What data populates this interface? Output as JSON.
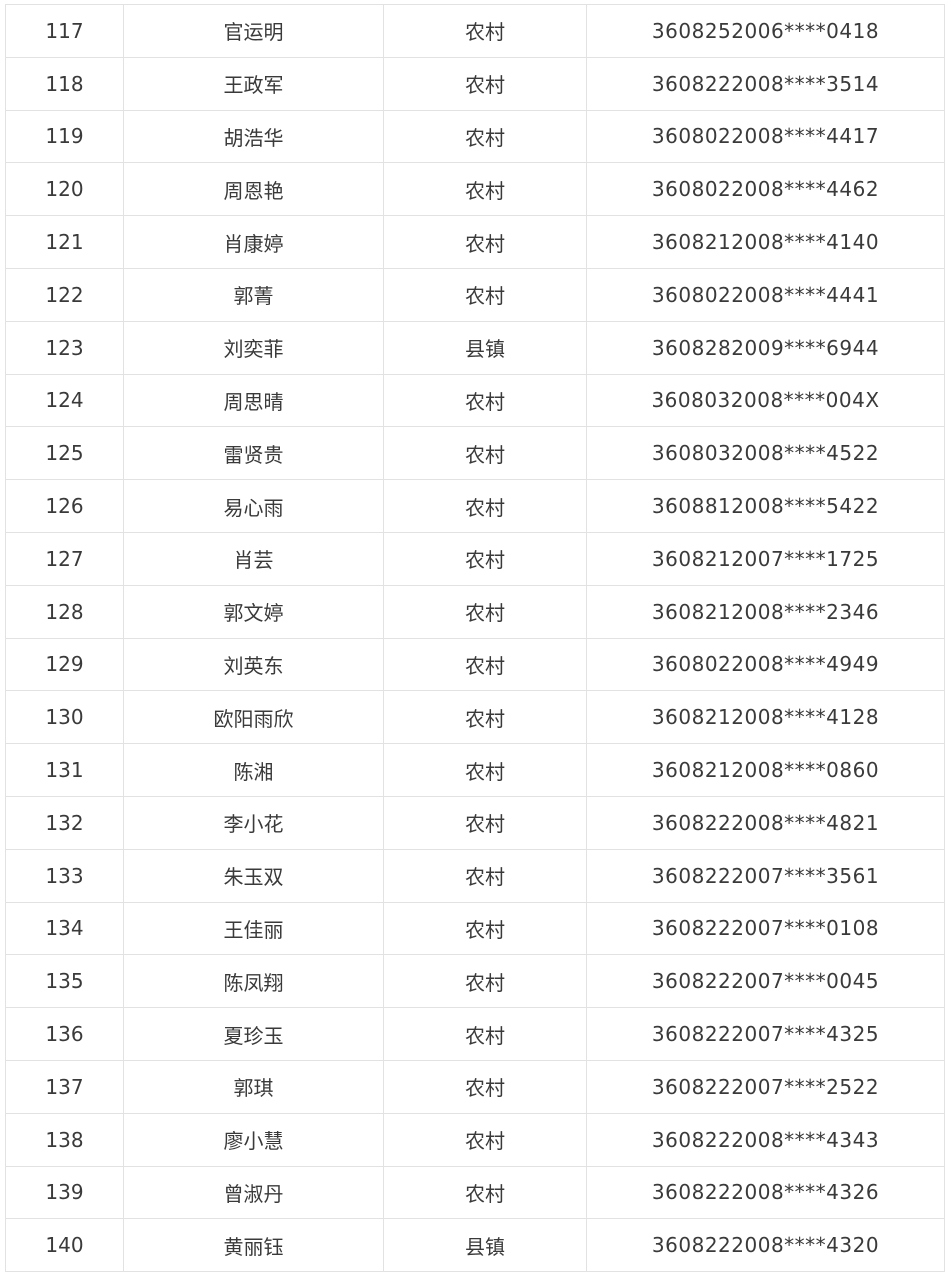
{
  "table": {
    "rows": [
      [
        "117",
        "官运明",
        "农村",
        "3608252006****0418"
      ],
      [
        "118",
        "王政军",
        "农村",
        "3608222008****3514"
      ],
      [
        "119",
        "胡浩华",
        "农村",
        "3608022008****4417"
      ],
      [
        "120",
        "周恩艳",
        "农村",
        "3608022008****4462"
      ],
      [
        "121",
        "肖康婷",
        "农村",
        "3608212008****4140"
      ],
      [
        "122",
        "郭菁",
        "农村",
        "3608022008****4441"
      ],
      [
        "123",
        "刘奕菲",
        "县镇",
        "3608282009****6944"
      ],
      [
        "124",
        "周思晴",
        "农村",
        "3608032008****004X"
      ],
      [
        "125",
        "雷贤贵",
        "农村",
        "3608032008****4522"
      ],
      [
        "126",
        "易心雨",
        "农村",
        "3608812008****5422"
      ],
      [
        "127",
        "肖芸",
        "农村",
        "3608212007****1725"
      ],
      [
        "128",
        "郭文婷",
        "农村",
        "3608212008****2346"
      ],
      [
        "129",
        "刘英东",
        "农村",
        "3608022008****4949"
      ],
      [
        "130",
        "欧阳雨欣",
        "农村",
        "3608212008****4128"
      ],
      [
        "131",
        "陈湘",
        "农村",
        "3608212008****0860"
      ],
      [
        "132",
        "李小花",
        "农村",
        "3608222008****4821"
      ],
      [
        "133",
        "朱玉双",
        "农村",
        "3608222007****3561"
      ],
      [
        "134",
        "王佳丽",
        "农村",
        "3608222007****0108"
      ],
      [
        "135",
        "陈凤翔",
        "农村",
        "3608222007****0045"
      ],
      [
        "136",
        "夏珍玉",
        "农村",
        "3608222007****4325"
      ],
      [
        "137",
        "郭琪",
        "农村",
        "3608222007****2522"
      ],
      [
        "138",
        "廖小慧",
        "农村",
        "3608222008****4343"
      ],
      [
        "139",
        "曾淑丹",
        "农村",
        "3608222008****4326"
      ],
      [
        "140",
        "黄丽钰",
        "县镇",
        "3608222008****4320"
      ]
    ]
  }
}
